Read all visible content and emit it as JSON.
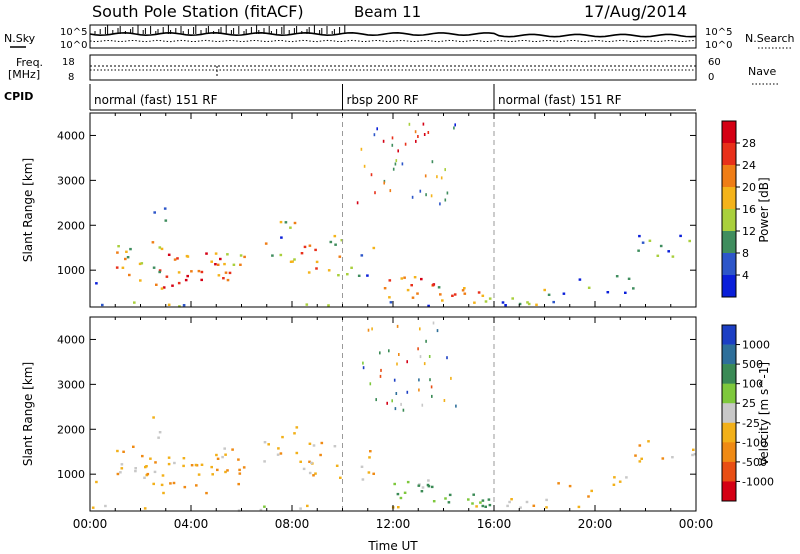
{
  "header": {
    "station": "South Pole Station (fitACF)",
    "beam": "Beam 11",
    "date": "17/Aug/2014"
  },
  "strips": {
    "nsky_label": "N.Sky",
    "nsearch_label": "N.Search",
    "noise_ticks_left": [
      "10^5",
      "10^0"
    ],
    "noise_ticks_right": [
      "10^5",
      "10^0"
    ],
    "freq_label_1": "Freq.",
    "freq_label_2": "[MHz]",
    "freq_ticks": [
      "18",
      "8"
    ],
    "nave_label": "Nave",
    "nave_ticks": [
      "60",
      "0"
    ],
    "cpid_label": "CPID",
    "cpid_segments": [
      {
        "label": "normal (fast) 151 RF",
        "start_h": 0,
        "end_h": 10
      },
      {
        "label": "rbsp 200 RF",
        "start_h": 10,
        "end_h": 16
      },
      {
        "label": "normal (fast) 151 RF",
        "start_h": 16,
        "end_h": 24
      }
    ]
  },
  "chart_data": [
    {
      "type": "heatmap",
      "panel": "power",
      "ylabel": "Slant Range [km]",
      "xlabel": "",
      "ylim": [
        180,
        4500
      ],
      "xlim": [
        0,
        24
      ],
      "yticks": [
        "1000",
        "2000",
        "3000",
        "4000"
      ],
      "colorbar": {
        "label": "Power [dB]",
        "ticks": [
          "4",
          "8",
          "12",
          "16",
          "20",
          "24",
          "28"
        ],
        "colors": [
          "#0a1fd9",
          "#2d56c9",
          "#3f8d5e",
          "#a9cf3c",
          "#f4b31a",
          "#ef7d16",
          "#e8301a",
          "#d40014"
        ]
      }
    },
    {
      "type": "heatmap",
      "panel": "velocity",
      "ylabel": "Slant Range [km]",
      "xlabel": "Time UT",
      "ylim": [
        180,
        4500
      ],
      "xlim": [
        0,
        24
      ],
      "yticks": [
        "1000",
        "2000",
        "3000",
        "4000"
      ],
      "xticks": [
        "00:00",
        "04:00",
        "08:00",
        "12:00",
        "16:00",
        "20:00",
        "00:00"
      ],
      "colorbar": {
        "label": "Velocity [m s^-1]",
        "ticks": [
          "1000",
          "500",
          "100",
          "25",
          "-25",
          "-100",
          "-500",
          "-1000"
        ],
        "colors": [
          "#1c3fc4",
          "#2e6f9a",
          "#3a8a55",
          "#7ec83c",
          "#c8c8c8",
          "#f2b019",
          "#ef8a14",
          "#e84e14",
          "#d40014"
        ]
      }
    }
  ]
}
